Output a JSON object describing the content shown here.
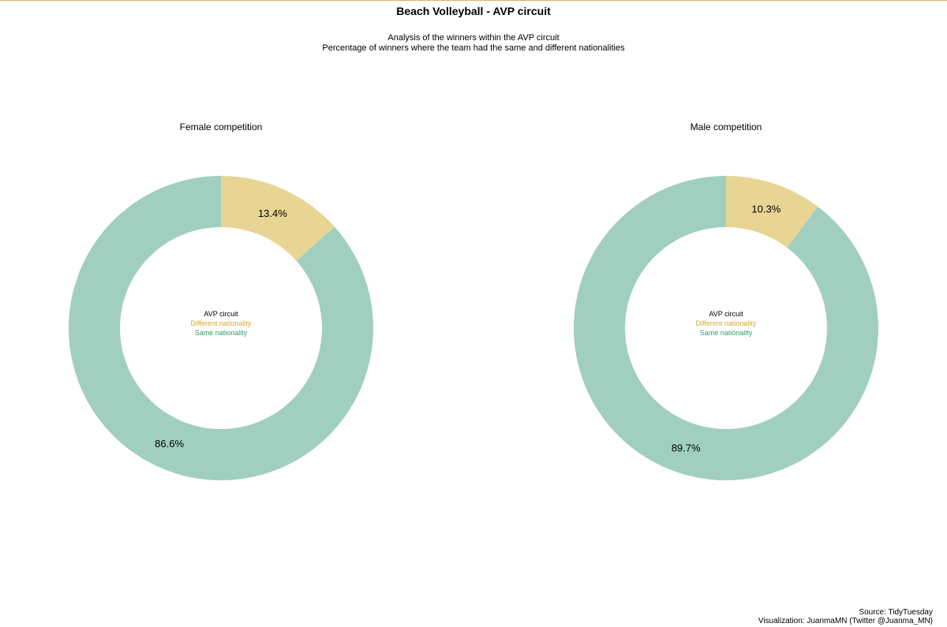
{
  "title": "Beach Volleyball - AVP circuit",
  "subtitle": [
    "Analysis of the winners within the AVP circuit",
    "Percentage of winners where the team had the same and different nationalities"
  ],
  "caption": [
    "Source: TidyTuesday",
    "Visualization: JuanmaMN (Twitter @Juanma_MN)"
  ],
  "colors": {
    "different": "#e8d594",
    "same": "#a1cfbf",
    "legend_different": "#d9a92b",
    "legend_same": "#2f9e6b",
    "rule": "#d9b36a"
  },
  "chart_data": [
    {
      "type": "pie",
      "title": "Female competition",
      "center_label": "AVP circuit",
      "categories": [
        "Different nationality",
        "Same nationality"
      ],
      "values": [
        13.4,
        86.6
      ],
      "labels": [
        "13.4%",
        "86.6%"
      ]
    },
    {
      "type": "pie",
      "title": "Male competition",
      "center_label": "AVP circuit",
      "categories": [
        "Different nationality",
        "Same nationality"
      ],
      "values": [
        10.3,
        89.7
      ],
      "labels": [
        "10.3%",
        "89.7%"
      ]
    }
  ]
}
